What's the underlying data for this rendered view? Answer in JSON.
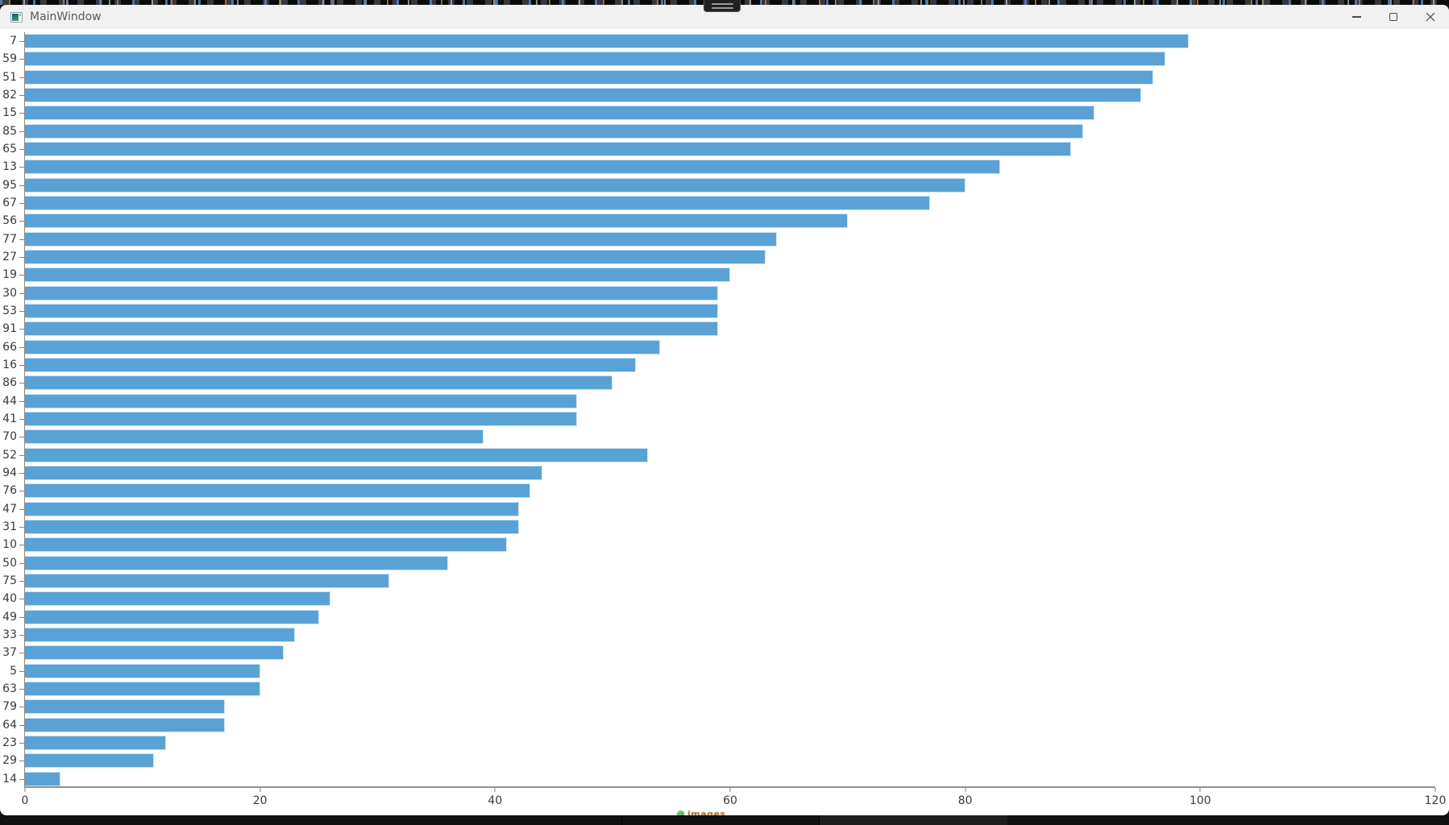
{
  "window": {
    "title": "MainWindow",
    "icons": {
      "app": "window-icon",
      "minimize": "minus-line",
      "maximize": "square-outline",
      "close": "x-lines",
      "grip": "double-horizontal-lines"
    }
  },
  "overlay": {
    "share_fragment_text": "images"
  },
  "chart_data": {
    "type": "bar",
    "orientation": "horizontal",
    "title": "",
    "xlabel": "",
    "ylabel": "",
    "grid": false,
    "legend": null,
    "bar_color": "#5AA2D5",
    "xlim": [
      0,
      120
    ],
    "xticks": [
      0,
      20,
      40,
      60,
      80,
      100,
      120
    ],
    "categories": [
      "7",
      "59",
      "51",
      "82",
      "15",
      "85",
      "65",
      "13",
      "95",
      "67",
      "56",
      "77",
      "27",
      "19",
      "30",
      "53",
      "91",
      "66",
      "16",
      "86",
      "44",
      "41",
      "70",
      "52",
      "94",
      "76",
      "47",
      "31",
      "10",
      "50",
      "75",
      "40",
      "49",
      "33",
      "37",
      "5",
      "63",
      "79",
      "64",
      "23",
      "29",
      "14"
    ],
    "values": [
      99,
      97,
      96,
      95,
      91,
      90,
      89,
      83,
      80,
      77,
      70,
      64,
      63,
      60,
      59,
      59,
      59,
      54,
      52,
      50,
      47,
      47,
      39,
      53,
      44,
      43,
      42,
      42,
      41,
      36,
      31,
      26,
      25,
      23,
      22,
      20,
      20,
      17,
      17,
      12,
      11,
      3
    ]
  }
}
